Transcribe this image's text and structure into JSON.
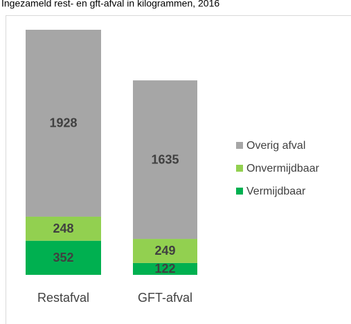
{
  "chart_data": {
    "type": "stacked_bar",
    "title": "Ingezameld rest- en gft-afval in kilogrammen, 2016",
    "categories": [
      "Restafval",
      "GFT-afval"
    ],
    "series": [
      {
        "name": "Overig afval",
        "color": "#a6a6a6",
        "values": [
          1928,
          1635
        ]
      },
      {
        "name": "Onvermijdbaar",
        "color": "#92d050",
        "values": [
          248,
          249
        ]
      },
      {
        "name": "Vermijdbaar",
        "color": "#00b050",
        "values": [
          352,
          122
        ]
      }
    ],
    "legend": "right"
  }
}
